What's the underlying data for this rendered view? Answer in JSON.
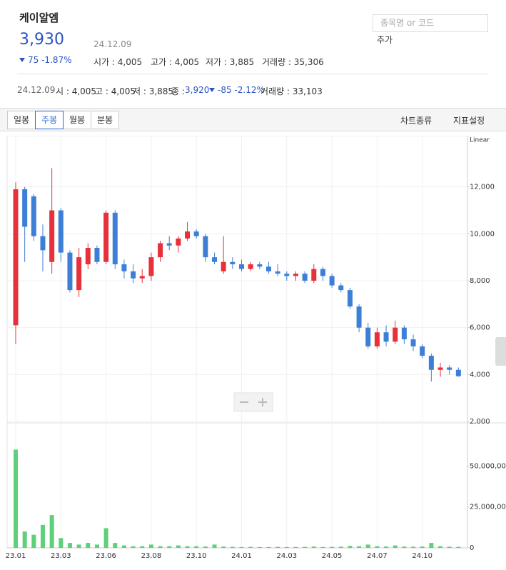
{
  "header": {
    "name": "케이알엠",
    "price": "3,930",
    "date": "24.12.09",
    "change": "75 -1.87%",
    "stats": [
      "시가 : 4,005",
      "고가 : 4,005",
      "저가 : 3,885",
      "거래량 : 35,306"
    ]
  },
  "daily": {
    "date": "24.12.09",
    "stats": [
      "시 : 4,005",
      "고 : 4,005",
      "저 : 3,885"
    ],
    "close_label": "종 :",
    "close": "3,920",
    "change": "-85 -2.12%",
    "volume": "거래량 : 33,103"
  },
  "search": {
    "placeholder": "종목명 or 코드",
    "button": "추가"
  },
  "toolbar": {
    "tabs": [
      "일봉",
      "주봉",
      "월봉",
      "분봉"
    ],
    "right": [
      "차트종류",
      "지표설정"
    ]
  },
  "chart_data": {
    "type": "candlestick",
    "scale_label": "Linear",
    "categories": [
      "23.01",
      null,
      null,
      null,
      null,
      "23.03",
      null,
      null,
      null,
      null,
      "23.06",
      null,
      null,
      null,
      null,
      "23.08",
      null,
      null,
      null,
      null,
      "23.10",
      null,
      null,
      null,
      null,
      "24.01",
      null,
      null,
      null,
      null,
      "24.03",
      null,
      null,
      null,
      null,
      "24.05",
      null,
      null,
      null,
      null,
      "24.07",
      null,
      null,
      null,
      null,
      "24.10",
      null,
      null,
      null,
      null
    ],
    "open": [
      6100,
      11900,
      11600,
      9900,
      8800,
      11000,
      9200,
      7600,
      8700,
      9400,
      8800,
      10900,
      8700,
      8400,
      8100,
      8200,
      9000,
      9600,
      9500,
      9800,
      10100,
      9900,
      9000,
      8400,
      8800,
      8700,
      8500,
      8700,
      8600,
      8400,
      8300,
      8200,
      8300,
      8000,
      8500,
      8200,
      7800,
      7600,
      6900,
      6000,
      5200,
      5800,
      5400,
      6000,
      5500,
      5200,
      4800,
      4200,
      4300,
      4200
    ],
    "high": [
      12200,
      12000,
      11700,
      10400,
      12800,
      11100,
      9300,
      9400,
      9600,
      9500,
      11000,
      11000,
      8900,
      8700,
      8500,
      9200,
      9700,
      9900,
      9900,
      10500,
      10200,
      10000,
      9200,
      9900,
      9000,
      8900,
      8800,
      8800,
      8800,
      8700,
      8400,
      8400,
      8400,
      8700,
      8600,
      8300,
      7900,
      7700,
      7000,
      6200,
      6000,
      6100,
      6300,
      6100,
      5700,
      5300,
      4900,
      4500,
      4400,
      4300
    ],
    "low": [
      5300,
      8800,
      9700,
      8400,
      8300,
      8800,
      7500,
      7300,
      8500,
      8700,
      8700,
      8500,
      8100,
      7900,
      7900,
      8000,
      8800,
      9300,
      9200,
      9700,
      9800,
      8800,
      8700,
      8300,
      8500,
      8400,
      8400,
      8500,
      8300,
      8200,
      8000,
      8000,
      7900,
      7900,
      8000,
      7700,
      7500,
      6800,
      5800,
      5100,
      5100,
      5200,
      5300,
      5300,
      5000,
      4700,
      3700,
      3900,
      4000,
      3900
    ],
    "close": [
      11900,
      10300,
      9900,
      9300,
      11000,
      9200,
      7600,
      9000,
      9400,
      8800,
      10900,
      8700,
      8400,
      8100,
      8200,
      9000,
      9600,
      9500,
      9800,
      10100,
      9900,
      9000,
      8800,
      8800,
      8700,
      8500,
      8700,
      8600,
      8400,
      8300,
      8200,
      8300,
      8000,
      8500,
      8200,
      7800,
      7600,
      6900,
      6000,
      5200,
      5800,
      5400,
      6000,
      5500,
      5200,
      4800,
      4200,
      4300,
      4200,
      3930
    ],
    "up_color": "#e8303b",
    "down_color": "#3d7fd6",
    "volume": {
      "color": "#5ed07a",
      "values": [
        60000000,
        10000000,
        8000000,
        14000000,
        20000000,
        6000000,
        3000000,
        2000000,
        3000000,
        2000000,
        12000000,
        3000000,
        1500000,
        1000000,
        1000000,
        2000000,
        1000000,
        1000000,
        1500000,
        1000000,
        1000000,
        800000,
        2000000,
        800000,
        600000,
        500000,
        600000,
        500000,
        500000,
        600000,
        500000,
        500000,
        600000,
        800000,
        500000,
        600000,
        700000,
        1200000,
        1000000,
        2000000,
        1000000,
        800000,
        1500000,
        800000,
        700000,
        800000,
        3000000,
        1000000,
        700000,
        600000
      ],
      "ylim": [
        0,
        75000000
      ],
      "yticks": [
        0,
        {
          "value": 25000000,
          "label": "25,000,000"
        },
        {
          "value": 50000000,
          "label": "50,000,000"
        }
      ]
    },
    "ylim": [
      2000,
      14000
    ],
    "yticks": [
      {
        "value": 2000,
        "label": "2,000"
      },
      {
        "value": 4000,
        "label": "4,000"
      },
      {
        "value": 6000,
        "label": "6,000"
      },
      {
        "value": 8000,
        "label": "8,000"
      },
      {
        "value": 10000,
        "label": "10,000"
      },
      {
        "value": 12000,
        "label": "12,000"
      }
    ],
    "grid": true
  }
}
